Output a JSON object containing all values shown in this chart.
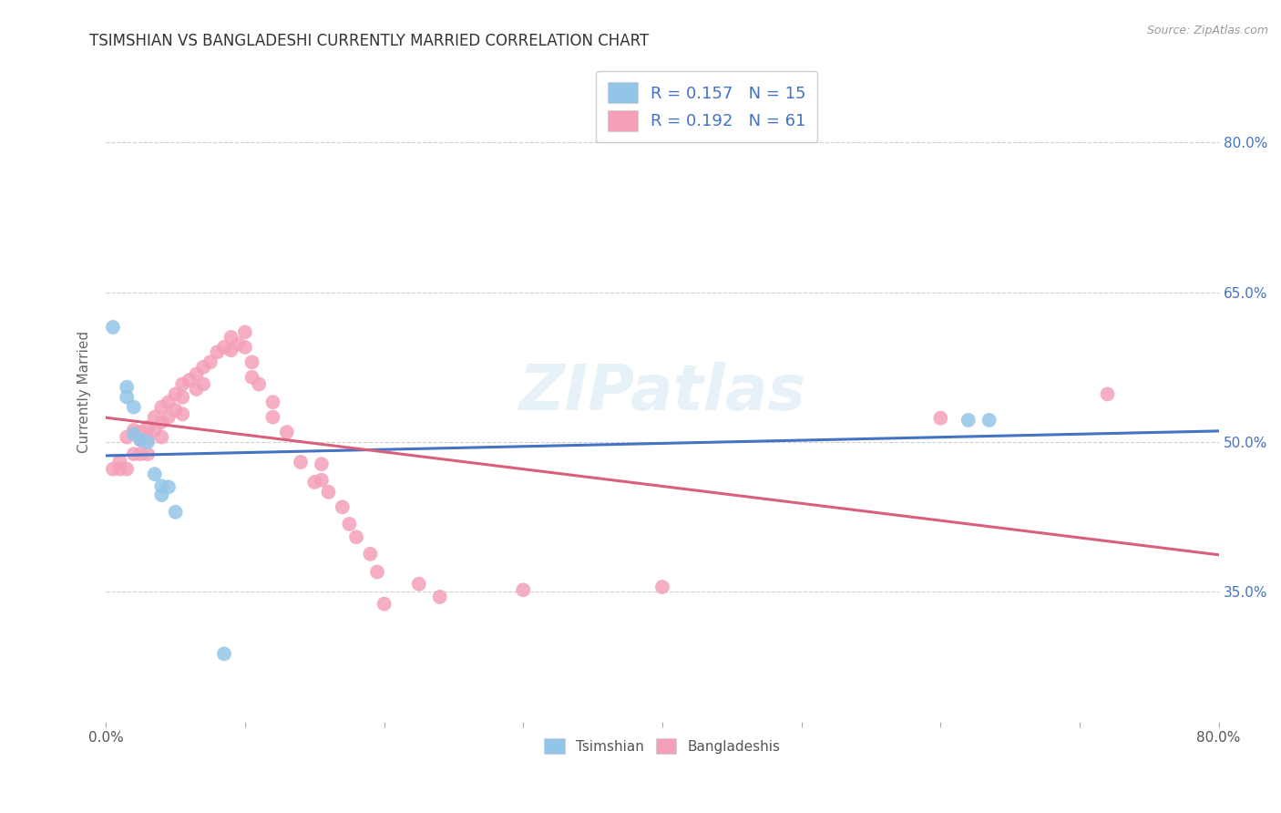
{
  "title": "TSIMSHIAN VS BANGLADESHI CURRENTLY MARRIED CORRELATION CHART",
  "source": "Source: ZipAtlas.com",
  "ylabel": "Currently Married",
  "y_ticks_right": [
    0.35,
    0.5,
    0.65,
    0.8
  ],
  "y_tick_labels": [
    "35.0%",
    "50.0%",
    "65.0%",
    "80.0%"
  ],
  "xlim": [
    0.0,
    0.8
  ],
  "ylim": [
    0.22,
    0.88
  ],
  "x_tick_positions": [
    0.0,
    0.1,
    0.2,
    0.3,
    0.4,
    0.5,
    0.6,
    0.7,
    0.8
  ],
  "legend_r1": "R = 0.157",
  "legend_n1": "N = 15",
  "legend_r2": "R = 0.192",
  "legend_n2": "N = 61",
  "blue_color": "#92c5e8",
  "pink_color": "#f4a0b8",
  "trendline_blue": "#4472c4",
  "trendline_pink": "#d9607a",
  "watermark": "ZIPatlas",
  "tsimshian_x": [
    0.005,
    0.015,
    0.015,
    0.02,
    0.02,
    0.025,
    0.03,
    0.035,
    0.04,
    0.04,
    0.045,
    0.05,
    0.085,
    0.62,
    0.635
  ],
  "tsimshian_y": [
    0.615,
    0.555,
    0.545,
    0.535,
    0.508,
    0.502,
    0.5,
    0.468,
    0.456,
    0.447,
    0.455,
    0.43,
    0.288,
    0.522,
    0.522
  ],
  "bangladeshi_x": [
    0.005,
    0.01,
    0.01,
    0.015,
    0.015,
    0.02,
    0.02,
    0.025,
    0.025,
    0.025,
    0.03,
    0.03,
    0.03,
    0.035,
    0.035,
    0.04,
    0.04,
    0.04,
    0.045,
    0.045,
    0.05,
    0.05,
    0.055,
    0.055,
    0.055,
    0.06,
    0.065,
    0.065,
    0.07,
    0.07,
    0.075,
    0.08,
    0.085,
    0.09,
    0.09,
    0.095,
    0.1,
    0.1,
    0.105,
    0.105,
    0.11,
    0.12,
    0.12,
    0.13,
    0.14,
    0.15,
    0.155,
    0.155,
    0.16,
    0.17,
    0.175,
    0.18,
    0.19,
    0.195,
    0.2,
    0.225,
    0.24,
    0.3,
    0.4,
    0.6,
    0.72
  ],
  "bangladeshi_y": [
    0.473,
    0.481,
    0.473,
    0.505,
    0.473,
    0.512,
    0.488,
    0.51,
    0.502,
    0.488,
    0.515,
    0.503,
    0.488,
    0.525,
    0.512,
    0.535,
    0.52,
    0.505,
    0.54,
    0.525,
    0.548,
    0.532,
    0.558,
    0.545,
    0.528,
    0.562,
    0.568,
    0.553,
    0.575,
    0.558,
    0.58,
    0.59,
    0.595,
    0.605,
    0.592,
    0.598,
    0.61,
    0.595,
    0.58,
    0.565,
    0.558,
    0.54,
    0.525,
    0.51,
    0.48,
    0.46,
    0.478,
    0.462,
    0.45,
    0.435,
    0.418,
    0.405,
    0.388,
    0.37,
    0.338,
    0.358,
    0.345,
    0.352,
    0.355,
    0.524,
    0.548
  ]
}
